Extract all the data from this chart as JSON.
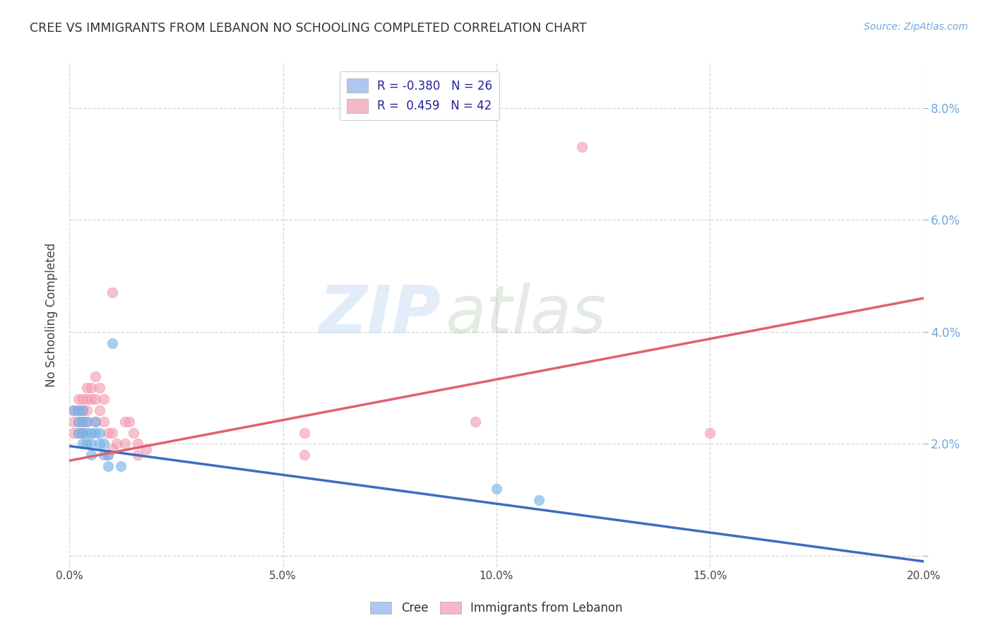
{
  "title": "CREE VS IMMIGRANTS FROM LEBANON NO SCHOOLING COMPLETED CORRELATION CHART",
  "source": "Source: ZipAtlas.com",
  "ylabel": "No Schooling Completed",
  "xlim": [
    0.0,
    0.2
  ],
  "ylim": [
    -0.002,
    0.088
  ],
  "yticks": [
    0.0,
    0.02,
    0.04,
    0.06,
    0.08
  ],
  "xticks": [
    0.0,
    0.05,
    0.1,
    0.15,
    0.2
  ],
  "xtick_labels": [
    "0.0%",
    "5.0%",
    "10.0%",
    "15.0%",
    "20.0%"
  ],
  "ytick_labels": [
    "",
    "2.0%",
    "4.0%",
    "6.0%",
    "8.0%"
  ],
  "legend_label1": "Cree",
  "legend_label2": "Immigrants from Lebanon",
  "cree_color": "#7ab3e8",
  "lebanon_color": "#f4a0b5",
  "cree_edge_color": "#5a9fd4",
  "lebanon_edge_color": "#e8607a",
  "cree_line_color": "#3d6dbf",
  "lebanon_line_color": "#e06070",
  "background_color": "#ffffff",
  "grid_color": "#cccccc",
  "watermark_zip": "ZIP",
  "watermark_atlas": "atlas",
  "legend_R1": "R = -0.380",
  "legend_N1": "N = 26",
  "legend_R2": "R =  0.459",
  "legend_N2": "N = 42",
  "legend_color1": "#aec6f0",
  "legend_color2": "#f4b8c8",
  "cree_line_x0": 0.0,
  "cree_line_y0": 0.0196,
  "cree_line_x1": 0.2,
  "cree_line_y1": -0.001,
  "lebanon_line_x0": 0.0,
  "lebanon_line_y0": 0.017,
  "lebanon_line_x1": 0.2,
  "lebanon_line_y1": 0.046,
  "cree_points": [
    [
      0.001,
      0.026
    ],
    [
      0.002,
      0.026
    ],
    [
      0.002,
      0.024
    ],
    [
      0.002,
      0.022
    ],
    [
      0.003,
      0.026
    ],
    [
      0.003,
      0.024
    ],
    [
      0.003,
      0.022
    ],
    [
      0.003,
      0.02
    ],
    [
      0.004,
      0.024
    ],
    [
      0.004,
      0.022
    ],
    [
      0.004,
      0.02
    ],
    [
      0.005,
      0.022
    ],
    [
      0.005,
      0.02
    ],
    [
      0.005,
      0.018
    ],
    [
      0.006,
      0.024
    ],
    [
      0.006,
      0.022
    ],
    [
      0.007,
      0.022
    ],
    [
      0.007,
      0.02
    ],
    [
      0.008,
      0.02
    ],
    [
      0.008,
      0.018
    ],
    [
      0.009,
      0.018
    ],
    [
      0.009,
      0.016
    ],
    [
      0.01,
      0.038
    ],
    [
      0.012,
      0.016
    ],
    [
      0.1,
      0.012
    ],
    [
      0.11,
      0.01
    ]
  ],
  "lebanon_points": [
    [
      0.001,
      0.026
    ],
    [
      0.001,
      0.024
    ],
    [
      0.001,
      0.022
    ],
    [
      0.002,
      0.028
    ],
    [
      0.002,
      0.026
    ],
    [
      0.002,
      0.024
    ],
    [
      0.002,
      0.022
    ],
    [
      0.003,
      0.028
    ],
    [
      0.003,
      0.026
    ],
    [
      0.003,
      0.024
    ],
    [
      0.003,
      0.022
    ],
    [
      0.004,
      0.03
    ],
    [
      0.004,
      0.028
    ],
    [
      0.004,
      0.026
    ],
    [
      0.004,
      0.024
    ],
    [
      0.005,
      0.03
    ],
    [
      0.005,
      0.028
    ],
    [
      0.006,
      0.032
    ],
    [
      0.006,
      0.028
    ],
    [
      0.006,
      0.024
    ],
    [
      0.007,
      0.03
    ],
    [
      0.007,
      0.026
    ],
    [
      0.008,
      0.028
    ],
    [
      0.008,
      0.024
    ],
    [
      0.009,
      0.022
    ],
    [
      0.009,
      0.018
    ],
    [
      0.01,
      0.047
    ],
    [
      0.01,
      0.022
    ],
    [
      0.011,
      0.02
    ],
    [
      0.013,
      0.024
    ],
    [
      0.013,
      0.02
    ],
    [
      0.014,
      0.024
    ],
    [
      0.015,
      0.022
    ],
    [
      0.016,
      0.02
    ],
    [
      0.016,
      0.018
    ],
    [
      0.018,
      0.019
    ],
    [
      0.055,
      0.022
    ],
    [
      0.055,
      0.018
    ],
    [
      0.095,
      0.024
    ],
    [
      0.12,
      0.073
    ],
    [
      0.15,
      0.022
    ],
    [
      0.01,
      0.019
    ]
  ]
}
